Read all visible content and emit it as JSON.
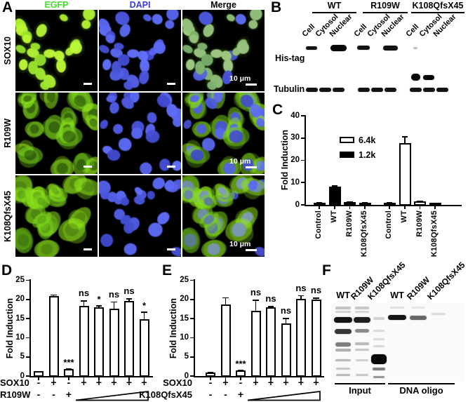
{
  "panel_a": {
    "label": "A",
    "column_headers": [
      {
        "label": "EGFP",
        "color": "#3fdc28"
      },
      {
        "label": "DAPI",
        "color": "#3a3ad6"
      },
      {
        "label": "Merge",
        "color": "#000000"
      }
    ],
    "row_labels": [
      "SOX10",
      "R109W",
      "K108QfsX45"
    ],
    "localization": [
      "nuclear",
      "cytoplasmic",
      "whole-cell"
    ],
    "scale_bar_label": "10 μm",
    "egfp_color": "#49e62e",
    "dapi_color": "#3b43d8"
  },
  "panel_b": {
    "label": "B",
    "groups": [
      "WT",
      "R109W",
      "K108QfsX45"
    ],
    "lane_labels": [
      "Cell",
      "Cytosol",
      "Nuclear"
    ],
    "blot_row_labels": [
      "His-tag",
      "Tubulin"
    ],
    "his_tag_bands": [
      [
        0,
        0,
        16,
        5,
        0.95
      ],
      [
        0,
        2,
        23,
        9,
        1
      ],
      [
        1,
        0,
        18,
        6,
        0.95
      ],
      [
        1,
        2,
        21,
        7,
        0.95
      ],
      [
        2,
        0,
        6,
        3,
        0.25
      ]
    ],
    "truncated_bands": [
      [
        2,
        0,
        13,
        10,
        1
      ],
      [
        2,
        1,
        16,
        7,
        1
      ]
    ],
    "tubulin_bands": [
      [
        0,
        0
      ],
      [
        0,
        1
      ],
      [
        0,
        2
      ],
      [
        1,
        0
      ],
      [
        1,
        1
      ],
      [
        1,
        2
      ],
      [
        2,
        0
      ],
      [
        2,
        1
      ],
      [
        2,
        2
      ]
    ]
  },
  "panel_c": {
    "label": "C"
  },
  "panel_d": {
    "label": "D"
  },
  "panel_e": {
    "label": "E"
  },
  "panel_f": {
    "label": "F",
    "group_labels": [
      "Input",
      "DNA oligo"
    ],
    "lanes": [
      {
        "group": "Input",
        "label": "WT",
        "bands": [
          [
            5,
            4,
            22,
            0.22
          ],
          [
            11,
            3,
            22,
            0.16
          ],
          [
            20,
            8,
            26,
            0.95
          ],
          [
            37,
            7,
            24,
            0.8
          ],
          [
            56,
            6,
            22,
            0.5
          ],
          [
            65,
            4,
            22,
            0.3
          ],
          [
            80,
            3,
            22,
            0.26
          ],
          [
            92,
            3,
            20,
            0.2
          ],
          [
            101,
            3,
            20,
            0.26
          ]
        ]
      },
      {
        "group": "Input",
        "label": "R109W",
        "bands": [
          [
            5,
            4,
            20,
            0.2
          ],
          [
            11,
            3,
            20,
            0.14
          ],
          [
            20,
            8,
            24,
            0.9
          ],
          [
            37,
            5,
            20,
            0.45
          ],
          [
            56,
            4,
            20,
            0.26
          ],
          [
            65,
            3,
            20,
            0.2
          ],
          [
            80,
            3,
            18,
            0.16
          ],
          [
            101,
            3,
            18,
            0.2
          ]
        ]
      },
      {
        "group": "Input",
        "label": "K108QfsX45",
        "bands": [
          [
            20,
            4,
            16,
            0.16
          ],
          [
            38,
            3,
            16,
            0.12
          ],
          [
            50,
            3,
            16,
            0.12
          ],
          [
            60,
            3,
            16,
            0.13
          ],
          [
            73,
            14,
            22,
            1
          ],
          [
            92,
            4,
            18,
            0.5
          ],
          [
            104,
            3,
            16,
            0.4
          ]
        ]
      },
      {
        "group": "DNA oligo",
        "label": "WT",
        "bands": [
          [
            5,
            3,
            20,
            0.1
          ],
          [
            17,
            7,
            26,
            0.95
          ]
        ]
      },
      {
        "group": "DNA oligo",
        "label": "R109W",
        "bands": [
          [
            5,
            3,
            18,
            0.08
          ],
          [
            18,
            6,
            24,
            0.6
          ]
        ]
      },
      {
        "group": "DNA oligo",
        "label": "K108QfsX45",
        "bands": [
          [
            14,
            3,
            20,
            0.12
          ]
        ]
      }
    ]
  },
  "chart_data": [
    {
      "id": "panel_c_chart",
      "type": "bar",
      "ylabel": "Fold Induction",
      "ylim": [
        0,
        40
      ],
      "yticks": [
        0,
        10,
        20,
        30,
        40
      ],
      "legend": [
        {
          "label": "6.4k",
          "fill": "#ffffff"
        },
        {
          "label": "1.2k",
          "fill": "#000000"
        }
      ],
      "categories": [
        "Control",
        "WT",
        "R109W",
        "K108QfsX45"
      ],
      "series": [
        {
          "name": "1.2k",
          "fill": "#000000",
          "values": [
            1.0,
            8.3,
            1.4,
            1.1
          ],
          "errors": [
            0.12,
            0.5,
            0.25,
            0.15
          ]
        },
        {
          "name": "6.4k",
          "fill": "#ffffff",
          "values": [
            1.0,
            27.8,
            1.5,
            0.9
          ],
          "errors": [
            0.2,
            3.0,
            0.3,
            0.2
          ]
        }
      ]
    },
    {
      "id": "panel_d_chart",
      "type": "bar",
      "ylabel": "Fold Induction",
      "ylim": [
        0,
        25
      ],
      "yticks": [
        0,
        5,
        10,
        15,
        20,
        25
      ],
      "values": [
        1.2,
        20.8,
        1.8,
        18.4,
        18.0,
        17.6,
        19.6,
        14.8
      ],
      "errors": [
        0.1,
        0.5,
        0.25,
        1.3,
        0.5,
        1.9,
        0.7,
        2.0
      ],
      "sig": [
        "",
        "",
        "***",
        "ns",
        "*",
        "ns",
        "ns",
        "*"
      ],
      "condition_rows": [
        {
          "label": "SOX10",
          "values": [
            "-",
            "+",
            "-",
            "+",
            "+",
            "+",
            "+",
            "+"
          ]
        },
        {
          "label": "R109W",
          "values": [
            "-",
            "-",
            "+"
          ],
          "wedge_over_bars": [
            3,
            7
          ]
        }
      ]
    },
    {
      "id": "panel_e_chart",
      "type": "bar",
      "ylabel": "Fold Induction",
      "ylim": [
        0,
        25
      ],
      "yticks": [
        0,
        5,
        10,
        15,
        20,
        25
      ],
      "values": [
        1.0,
        18.7,
        1.4,
        17.0,
        17.9,
        13.8,
        20.2,
        20.0
      ],
      "errors": [
        0.1,
        1.9,
        0.2,
        2.9,
        0.4,
        1.4,
        0.9,
        0.5
      ],
      "sig": [
        "",
        "",
        "***",
        "ns",
        "ns",
        "ns",
        "ns",
        "ns"
      ],
      "condition_rows": [
        {
          "label": "SOX10",
          "values": [
            "-",
            "+",
            "-",
            "+",
            "+",
            "+",
            "+",
            "+"
          ]
        },
        {
          "label": "K108QfsX45",
          "values": [
            "-",
            "-",
            "+"
          ],
          "wedge_over_bars": [
            3,
            7
          ]
        }
      ]
    }
  ]
}
